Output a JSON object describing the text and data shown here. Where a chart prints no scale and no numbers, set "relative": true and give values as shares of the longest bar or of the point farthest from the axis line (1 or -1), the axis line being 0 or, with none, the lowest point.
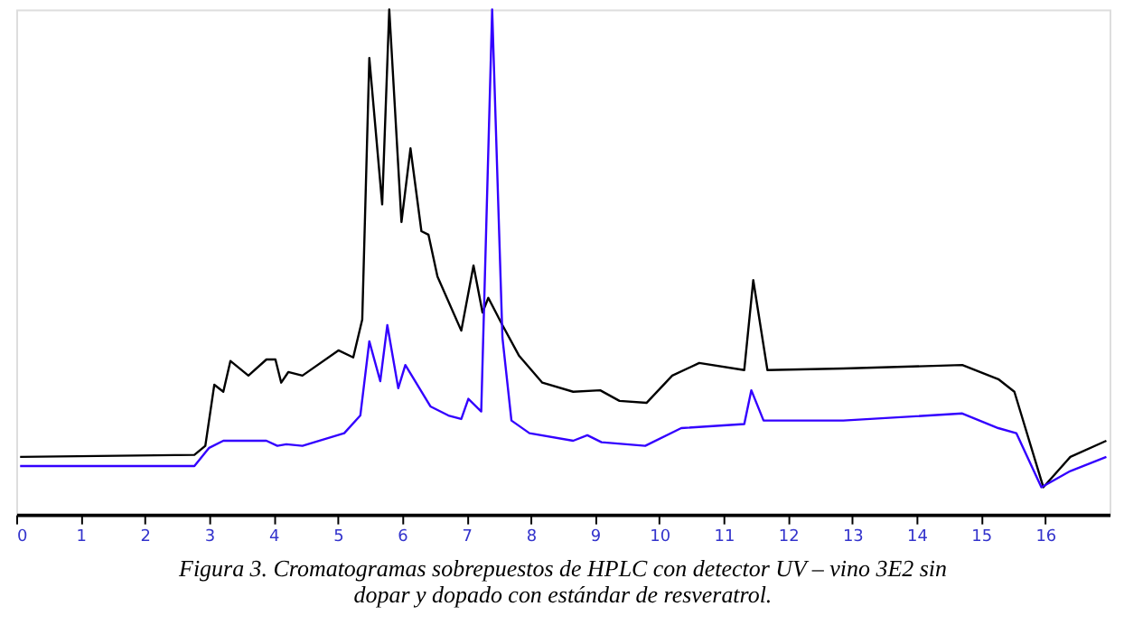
{
  "chart_data": {
    "type": "line",
    "relative": true,
    "xlim": [
      0,
      17
    ],
    "xticks": [
      0,
      1,
      2,
      3,
      4,
      5,
      6,
      7,
      8,
      9,
      10,
      11,
      12,
      13,
      14,
      15,
      16
    ],
    "grid": false,
    "legend": false,
    "marker": "none",
    "line_style": "solid",
    "annotations": [
      "Figura 3. Cromatogramas sobrepuestos de HPLC con detector UV – vino 3E2 sin dopar y dopado con estándar de resveratrol."
    ],
    "series": [
      {
        "color": "#000000",
        "x": [
          0.06,
          2.77,
          2.94,
          3.08,
          3.22,
          3.33,
          3.61,
          3.89,
          4.03,
          4.12,
          4.23,
          4.45,
          5.01,
          5.24,
          5.38,
          5.49,
          5.69,
          5.8,
          5.99,
          6.13,
          6.3,
          6.41,
          6.55,
          6.92,
          7.11,
          7.25,
          7.34,
          7.56,
          7.82,
          8.18,
          8.66,
          9.08,
          9.38,
          9.8,
          10.2,
          10.62,
          11.32,
          11.46,
          11.68,
          12.86,
          14.71,
          15.27,
          15.52,
          15.97,
          16.39,
          16.95
        ],
        "values": [
          0.114,
          0.118,
          0.136,
          0.257,
          0.243,
          0.304,
          0.275,
          0.307,
          0.307,
          0.261,
          0.282,
          0.275,
          0.325,
          0.311,
          0.386,
          0.904,
          0.614,
          1.0,
          0.579,
          0.725,
          0.561,
          0.554,
          0.471,
          0.364,
          0.493,
          0.4,
          0.429,
          0.375,
          0.314,
          0.261,
          0.243,
          0.246,
          0.225,
          0.221,
          0.275,
          0.3,
          0.286,
          0.464,
          0.286,
          0.289,
          0.296,
          0.268,
          0.243,
          0.054,
          0.114,
          0.146
        ]
      },
      {
        "color": "#3300ff",
        "x": [
          0.06,
          2.77,
          3.0,
          3.22,
          3.89,
          4.06,
          4.2,
          4.45,
          5.1,
          5.35,
          5.49,
          5.66,
          5.77,
          5.94,
          6.05,
          6.44,
          6.72,
          6.92,
          7.03,
          7.23,
          7.4,
          7.56,
          7.7,
          7.98,
          8.66,
          8.88,
          9.1,
          9.78,
          10.34,
          11.32,
          11.43,
          11.62,
          12.86,
          14.71,
          15.27,
          15.55,
          15.94,
          16.39,
          16.95
        ],
        "values": [
          0.096,
          0.096,
          0.132,
          0.146,
          0.146,
          0.136,
          0.139,
          0.136,
          0.161,
          0.196,
          0.343,
          0.264,
          0.375,
          0.25,
          0.296,
          0.214,
          0.196,
          0.189,
          0.229,
          0.204,
          1.0,
          0.35,
          0.186,
          0.161,
          0.146,
          0.157,
          0.143,
          0.136,
          0.171,
          0.179,
          0.246,
          0.186,
          0.186,
          0.2,
          0.171,
          0.161,
          0.054,
          0.086,
          0.114
        ]
      }
    ]
  }
}
